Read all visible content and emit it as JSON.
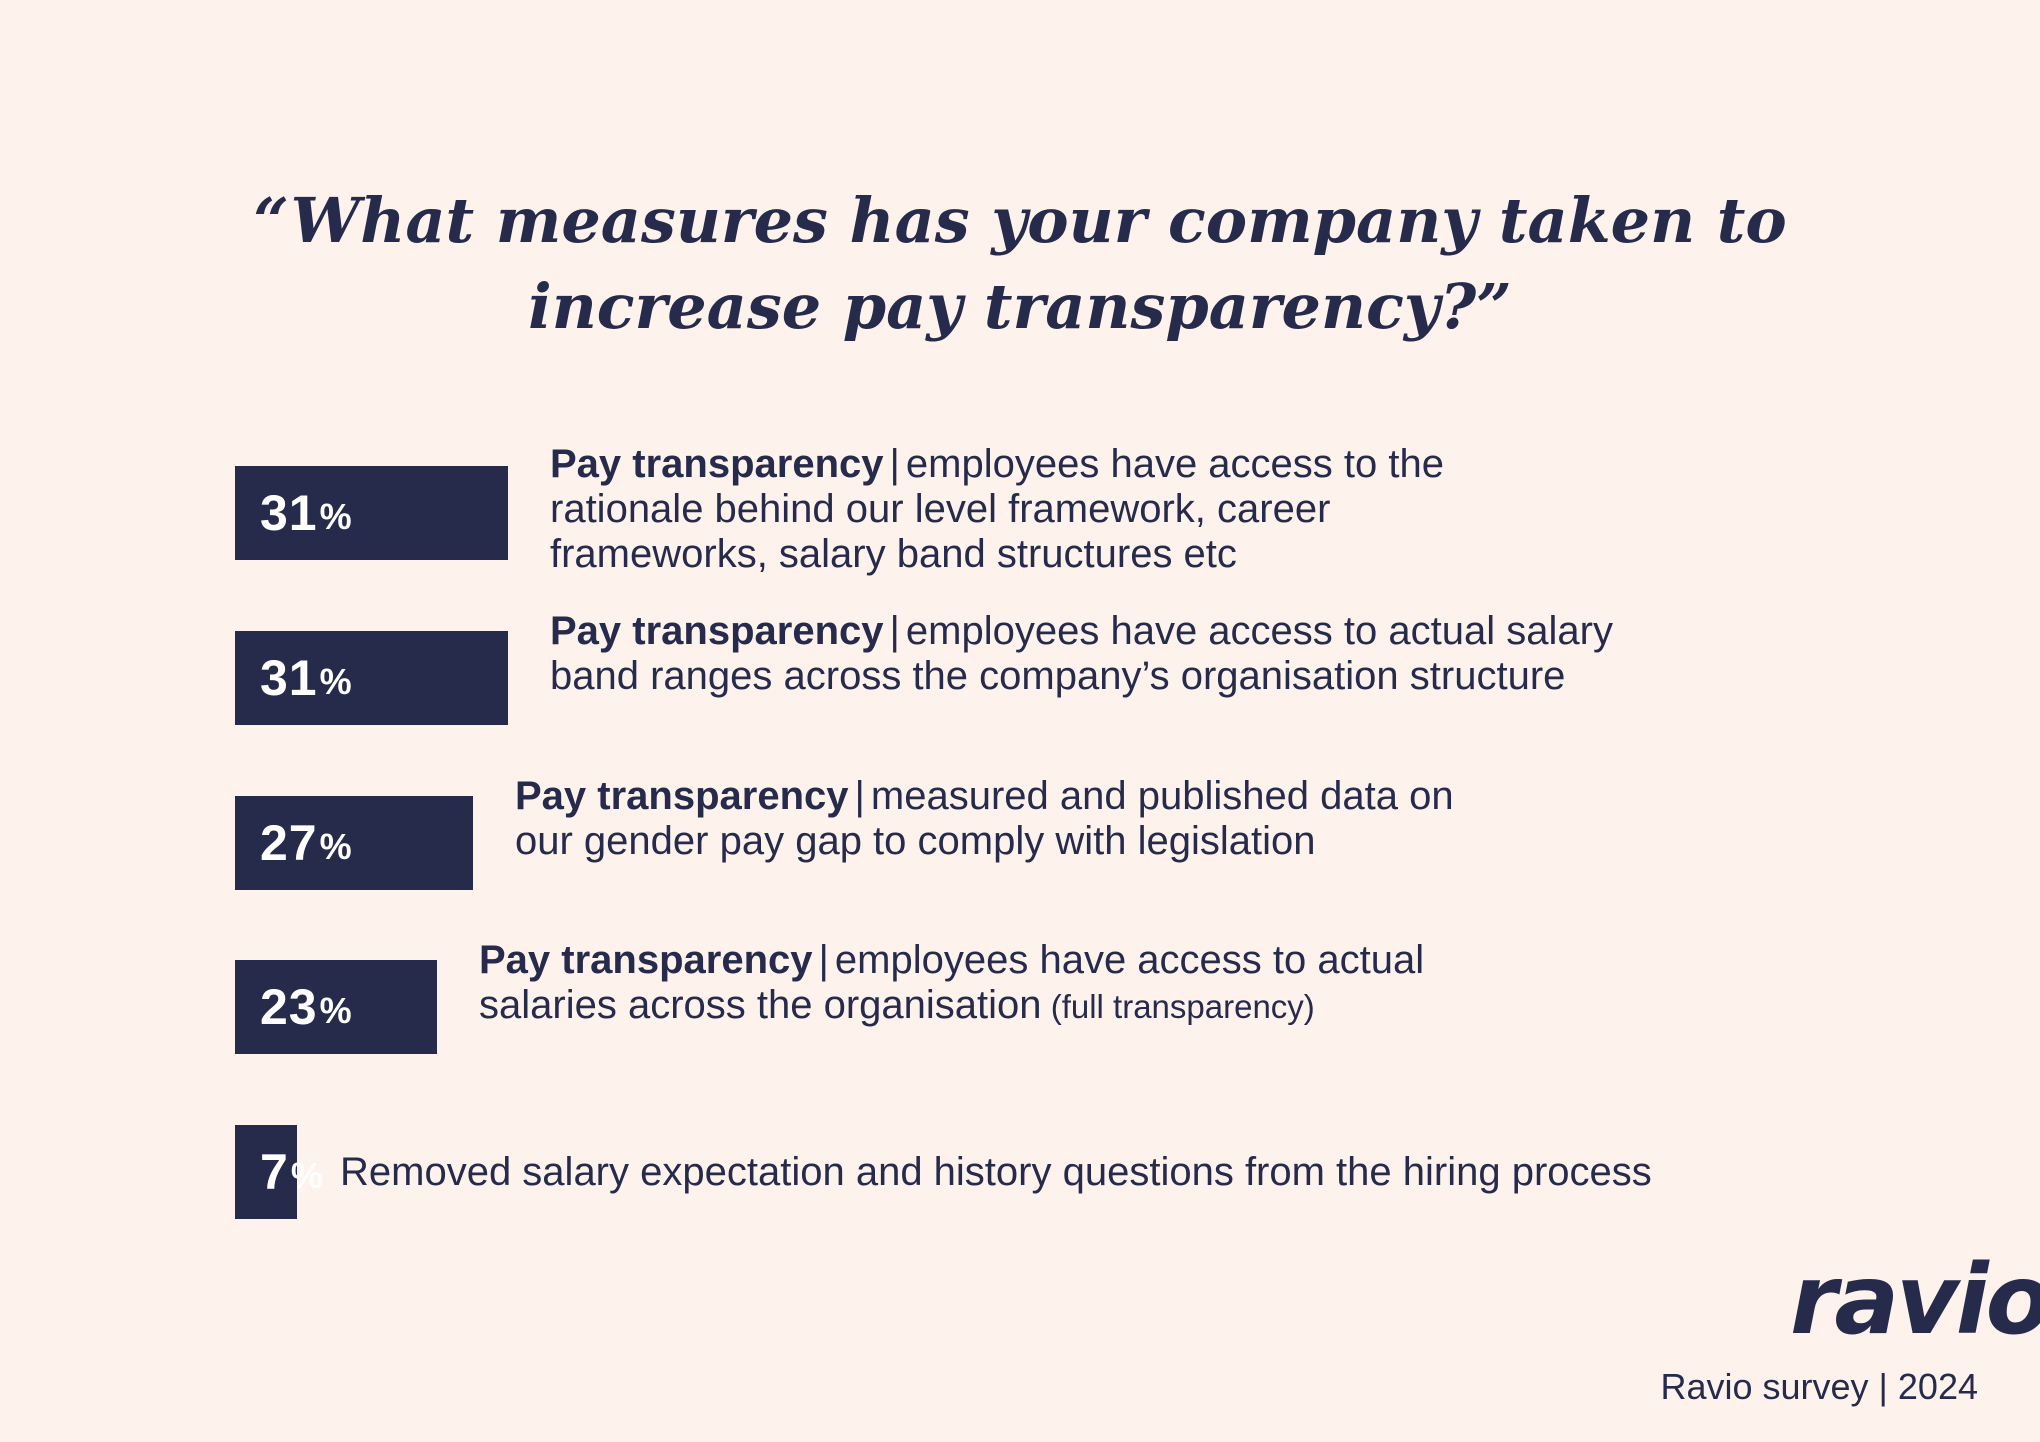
{
  "chart_data": {
    "type": "bar",
    "title": "“What measures has your company taken to increase pay transparency?”",
    "xlim": [
      0,
      100
    ],
    "bars": [
      {
        "value": 31,
        "value_label": "31",
        "unit": "%",
        "label_strong": "Pay transparency",
        "separator": "|",
        "label_lines": [
          "employees have access to the",
          "rationale behind our level framework, career",
          "frameworks, salary band structures etc"
        ],
        "note": ""
      },
      {
        "value": 31,
        "value_label": "31",
        "unit": "%",
        "label_strong": "Pay transparency",
        "separator": "|",
        "label_lines": [
          "employees have access to actual salary",
          "band ranges across the company’s organisation structure"
        ],
        "note": ""
      },
      {
        "value": 27,
        "value_label": "27",
        "unit": "%",
        "label_strong": "Pay transparency",
        "separator": "|",
        "label_lines": [
          "measured and published data on",
          "our gender pay gap to comply with legislation"
        ],
        "note": ""
      },
      {
        "value": 23,
        "value_label": "23",
        "unit": "%",
        "label_strong": "Pay transparency",
        "separator": "|",
        "label_lines": [
          "employees have access to actual",
          "salaries across the organisation"
        ],
        "note": "(full transparency)"
      },
      {
        "value": 7,
        "value_label": "7",
        "unit": "%",
        "label_strong": "",
        "separator": "",
        "label_lines": [
          "Removed salary expectation and history questions from the hiring process"
        ],
        "note": ""
      }
    ]
  },
  "branding": {
    "logo_text": "ravio",
    "footer_source": "Ravio survey",
    "footer_separator": "|",
    "footer_year": "2024"
  },
  "colors": {
    "background": "#fdf2ec",
    "bar": "#262b4c",
    "text": "#262b4c",
    "bar_text": "#ffffff"
  }
}
